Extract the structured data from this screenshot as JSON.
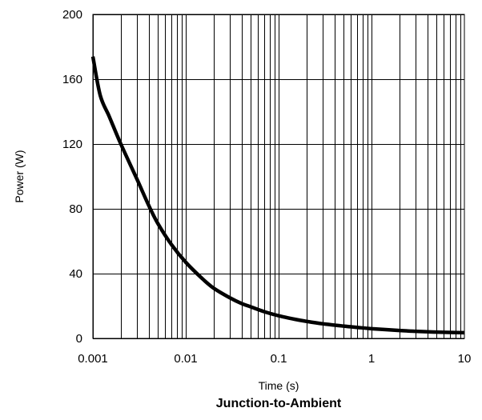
{
  "chart_data": {
    "type": "line",
    "title": "Junction-to-Ambient",
    "xlabel": "Time (s)",
    "ylabel": "Power  (W)",
    "xscale": "log",
    "xlim": [
      0.001,
      10
    ],
    "ylim": [
      0,
      200
    ],
    "grid": true,
    "line_color": "#000000",
    "x_ticks": [
      {
        "value": 0.001,
        "label": "0.001"
      },
      {
        "value": 0.01,
        "label": "0.01"
      },
      {
        "value": 0.1,
        "label": "0.1"
      },
      {
        "value": 1,
        "label": "1"
      },
      {
        "value": 10,
        "label": "10"
      }
    ],
    "y_ticks": [
      {
        "value": 0,
        "label": "0"
      },
      {
        "value": 40,
        "label": "40"
      },
      {
        "value": 80,
        "label": "80"
      },
      {
        "value": 120,
        "label": "120"
      },
      {
        "value": 160,
        "label": "160"
      },
      {
        "value": 200,
        "label": "200"
      }
    ],
    "series": [
      {
        "x": [
          0.001,
          0.0012,
          0.0015,
          0.002,
          0.003,
          0.004,
          0.005,
          0.007,
          0.01,
          0.015,
          0.02,
          0.03,
          0.04,
          0.05,
          0.07,
          0.1,
          0.15,
          0.2,
          0.3,
          0.5,
          0.7,
          1,
          2,
          3,
          5,
          10
        ],
        "y": [
          174,
          150,
          137,
          120,
          98,
          82,
          71,
          58,
          47,
          37,
          31,
          25,
          21.5,
          19.5,
          16.5,
          14,
          11.8,
          10.5,
          9,
          7.6,
          6.8,
          6,
          4.9,
          4.4,
          3.9,
          3.5
        ]
      }
    ]
  }
}
